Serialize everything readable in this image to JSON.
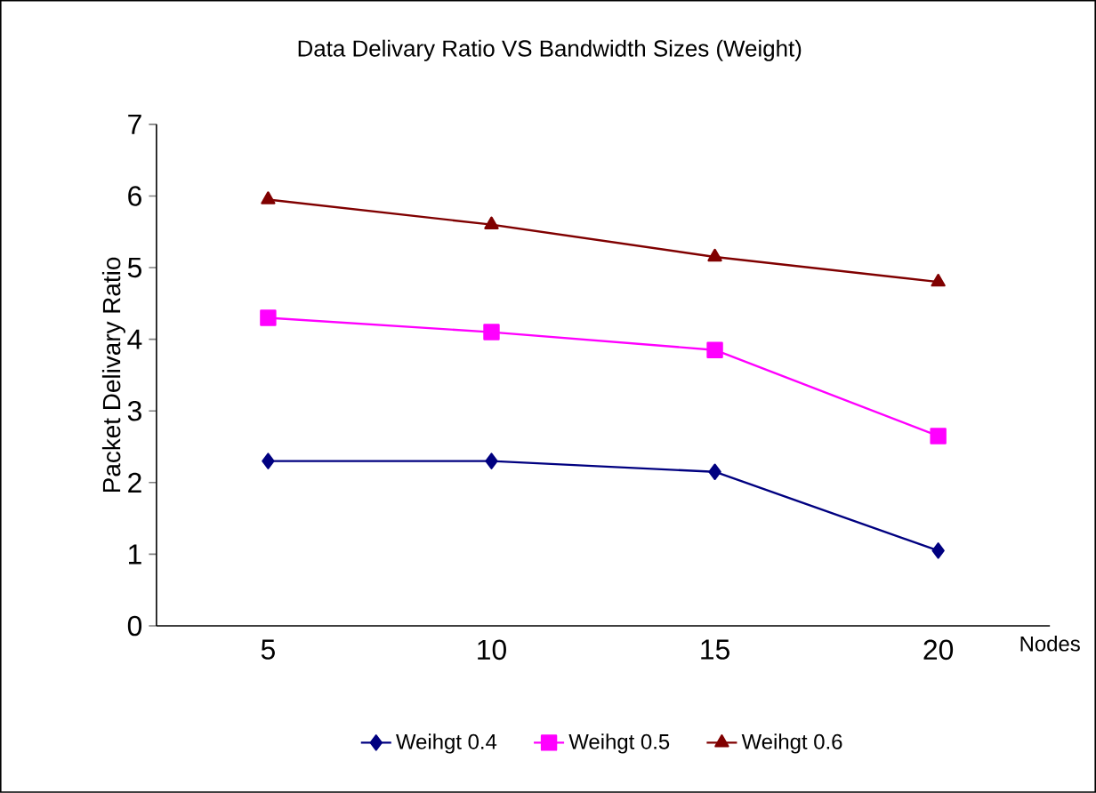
{
  "chart_data": {
    "type": "line",
    "title": "Data Delivary Ratio VS  Bandwidth Sizes (Weight)",
    "xlabel": "Nodes",
    "ylabel": "Packet Delivary Ratio",
    "categories": [
      "5",
      "10",
      "15",
      "20"
    ],
    "series": [
      {
        "name": "Weihgt 0.4",
        "color": "#000080",
        "marker": "diamond",
        "values": [
          2.3,
          2.3,
          2.15,
          1.05
        ]
      },
      {
        "name": "Weihgt 0.5",
        "color": "#ff00ff",
        "marker": "square",
        "values": [
          4.3,
          4.1,
          3.85,
          2.65
        ]
      },
      {
        "name": "Weihgt 0.6",
        "color": "#800000",
        "marker": "triangle",
        "values": [
          5.95,
          5.6,
          5.15,
          4.8
        ]
      }
    ],
    "ylim": [
      0,
      7
    ],
    "yticks": [
      0,
      1,
      2,
      3,
      4,
      5,
      6,
      7
    ],
    "grid": false,
    "legend": "bottom"
  }
}
